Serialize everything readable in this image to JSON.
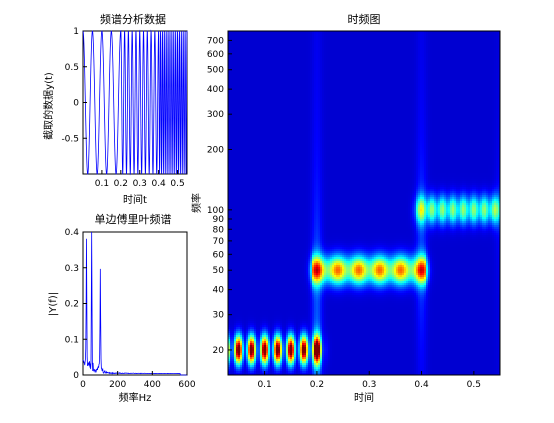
{
  "chart_data": [
    {
      "type": "line",
      "title": "频谱分析数据",
      "xlabel": "时间t",
      "ylabel": "截取的数据y(t)",
      "xlim": [
        0.0,
        0.55
      ],
      "ylim": [
        -1,
        1
      ],
      "x_ticks": [
        "0.1",
        "0.2",
        "0.3",
        "0.4",
        "0.5"
      ],
      "x_tick_values": [
        0.1,
        0.2,
        0.3,
        0.4,
        0.5
      ],
      "y_ticks": [
        "-0.5",
        "0",
        "0.5",
        "1"
      ],
      "y_tick_values": [
        -0.5,
        0,
        0.5,
        1
      ],
      "series": [
        {
          "color": "#0000ff",
          "segments": [
            {
              "t_start": 0.0,
              "t_end": 0.2,
              "freq_hz": 20
            },
            {
              "t_start": 0.2,
              "t_end": 0.4,
              "freq_hz": 50
            },
            {
              "t_start": 0.4,
              "t_end": 0.55,
              "freq_hz": 100
            }
          ]
        }
      ]
    },
    {
      "type": "line",
      "title": "单边傅里叶频谱",
      "xlabel": "频率Hz",
      "ylabel": "|Y(f)|",
      "xlim": [
        0,
        600
      ],
      "ylim": [
        0,
        0.4
      ],
      "x_ticks": [
        "0",
        "200",
        "400",
        "600"
      ],
      "x_tick_values": [
        0,
        200,
        400,
        600
      ],
      "y_ticks": [
        "0",
        "0.1",
        "0.2",
        "0.3",
        "0.4"
      ],
      "y_tick_values": [
        0,
        0.1,
        0.2,
        0.3,
        0.4
      ],
      "series": [
        {
          "color": "#0000ff",
          "peaks": [
            {
              "freq": 20,
              "amp": 0.34
            },
            {
              "freq": 50,
              "amp": 0.38
            },
            {
              "freq": 100,
              "amp": 0.29
            }
          ]
        }
      ]
    },
    {
      "type": "heatmap",
      "title": "时频图",
      "xlabel": "时间",
      "ylabel": "频率",
      "xlim": [
        0.03,
        0.55
      ],
      "ylim": [
        15,
        780
      ],
      "y_scale": "log",
      "x_ticks": [
        "0.1",
        "0.2",
        "0.3",
        "0.4",
        "0.5"
      ],
      "x_tick_values": [
        0.1,
        0.2,
        0.3,
        0.4,
        0.5
      ],
      "y_ticks": [
        "20",
        "30",
        "40",
        "50",
        "60",
        "70",
        "80",
        "90",
        "100",
        "200",
        "300",
        "400",
        "500",
        "600",
        "700"
      ],
      "y_tick_values": [
        20,
        30,
        40,
        50,
        60,
        70,
        80,
        90,
        100,
        200,
        300,
        400,
        500,
        600,
        700
      ],
      "colormap": "jet",
      "energy_bands": [
        {
          "t_start": 0.0,
          "t_end": 0.2,
          "freq_hz": 20,
          "intensity": 1.0
        },
        {
          "t_start": 0.2,
          "t_end": 0.4,
          "freq_hz": 50,
          "intensity": 0.7
        },
        {
          "t_start": 0.4,
          "t_end": 0.55,
          "freq_hz": 100,
          "intensity": 0.45
        }
      ]
    }
  ]
}
